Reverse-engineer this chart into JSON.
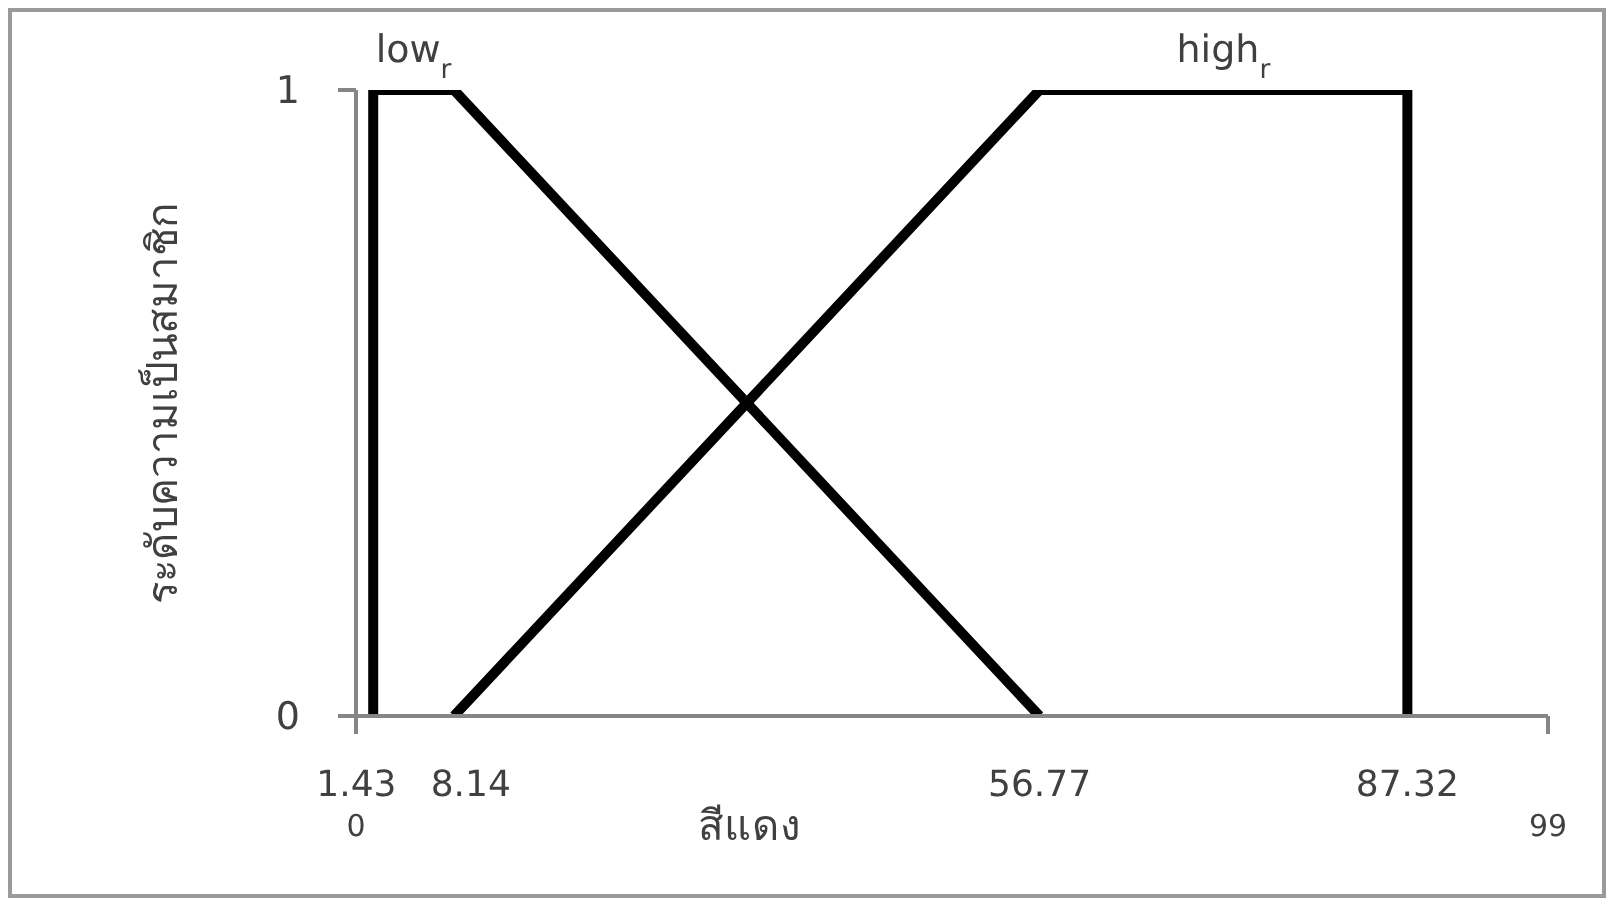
{
  "chart_data": {
    "type": "line",
    "xlabel": "สีแดง",
    "ylabel": "ระดับความเป็นสมาชิก",
    "xlim": [
      0,
      99
    ],
    "xticks": [
      0,
      99
    ],
    "ylim": [
      0,
      1
    ],
    "yticks": [
      0,
      1
    ],
    "series": [
      {
        "name": "low$_{r}$",
        "color": "#000000",
        "x": [
          1.43,
          1.43,
          8.14,
          56.77
        ],
        "values": [
          0,
          1,
          1,
          0
        ]
      },
      {
        "name": "high$_{r}$",
        "color": "#000000",
        "x": [
          8.14,
          56.77,
          87.32,
          87.32
        ],
        "values": [
          0,
          1,
          1,
          0
        ]
      }
    ],
    "annotations": [
      {
        "text": "1.43",
        "x": 1.43,
        "y": 0
      },
      {
        "text": "8.14",
        "x": 8.14,
        "y": 0
      },
      {
        "text": "56.77",
        "x": 56.77,
        "y": 0
      },
      {
        "text": "87.32",
        "x": 87.32,
        "y": 0
      }
    ]
  }
}
